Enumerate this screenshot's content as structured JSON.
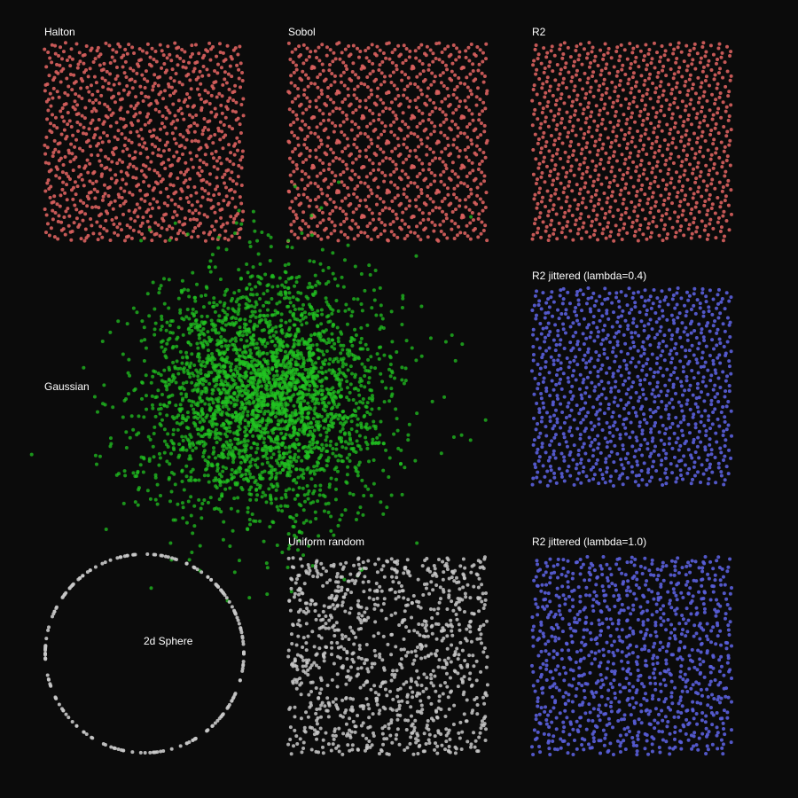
{
  "colors": {
    "background": "#0b0b0b",
    "label": "#ffffff",
    "low_discrepancy": "#d9605e",
    "gaussian": "#22c322",
    "sphere": "#c8c8c8",
    "uniform": "#c8c8c8",
    "jittered": "#5a5fdc"
  },
  "chart_data": [
    {
      "name": "halton-panel",
      "type": "scatter",
      "title": "Halton",
      "generator": "halton",
      "bases": [
        2,
        3
      ],
      "point_count": 1000,
      "domain": [
        [
          0,
          1
        ],
        [
          0,
          1
        ]
      ],
      "color": "#d9605e"
    },
    {
      "name": "sobol-panel",
      "type": "scatter",
      "title": "Sobol",
      "generator": "sobol",
      "point_count": 1000,
      "domain": [
        [
          0,
          1
        ],
        [
          0,
          1
        ]
      ],
      "color": "#d9605e"
    },
    {
      "name": "r2-panel",
      "type": "scatter",
      "title": "R2",
      "generator": "r2",
      "point_count": 1000,
      "domain": [
        [
          0,
          1
        ],
        [
          0,
          1
        ]
      ],
      "color": "#d9605e"
    },
    {
      "name": "gaussian-panel",
      "type": "scatter",
      "title": "Gaussian",
      "generator": "gaussian",
      "point_count": 3000,
      "mean": [
        0,
        0
      ],
      "std": [
        1,
        1
      ],
      "color": "#22c322"
    },
    {
      "name": "r2-jittered-04-panel",
      "type": "scatter",
      "title": "R2 jittered (lambda=0.4)",
      "generator": "r2_jittered",
      "lambda": 0.4,
      "point_count": 1000,
      "domain": [
        [
          0,
          1
        ],
        [
          0,
          1
        ]
      ],
      "color": "#5a5fdc"
    },
    {
      "name": "sphere-panel",
      "type": "scatter",
      "title": "2d Sphere",
      "generator": "circle",
      "radius": 1,
      "point_count": 200,
      "color": "#c8c8c8"
    },
    {
      "name": "uniform-panel",
      "type": "scatter",
      "title": "Uniform random",
      "generator": "uniform",
      "point_count": 1000,
      "domain": [
        [
          0,
          1
        ],
        [
          0,
          1
        ]
      ],
      "color": "#c8c8c8"
    },
    {
      "name": "r2-jittered-10-panel",
      "type": "scatter",
      "title": "R2 jittered (lambda=1.0)",
      "generator": "r2_jittered",
      "lambda": 1.0,
      "point_count": 1000,
      "domain": [
        [
          0,
          1
        ],
        [
          0,
          1
        ]
      ],
      "color": "#5a5fdc"
    }
  ]
}
